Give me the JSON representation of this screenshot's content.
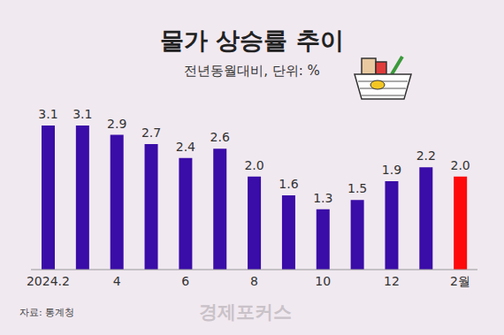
{
  "chart_data": {
    "type": "bar",
    "title": "물가 상승률 추이",
    "subtitle": "전년동월대비, 단위: %",
    "annotations": [
      "자료: 통계청",
      "경제포커스"
    ],
    "categories": [
      "2024.2",
      null,
      "4",
      null,
      "6",
      null,
      "8",
      null,
      "10",
      null,
      "12",
      null,
      "2월"
    ],
    "values": [
      3.1,
      3.1,
      2.9,
      2.7,
      2.4,
      2.6,
      2.0,
      1.6,
      1.3,
      1.5,
      1.9,
      2.2,
      2.0
    ],
    "value_labels": [
      "3.1",
      "3.1",
      "2.9",
      "2.7",
      "2.4",
      "2.6",
      "2.0",
      "1.6",
      "1.3",
      "1.5",
      "1.9",
      "2.2",
      "2.0"
    ],
    "colors": [
      "#3a0ca8",
      "#3a0ca8",
      "#3a0ca8",
      "#3a0ca8",
      "#3a0ca8",
      "#3a0ca8",
      "#3a0ca8",
      "#3a0ca8",
      "#3a0ca8",
      "#3a0ca8",
      "#3a0ca8",
      "#3a0ca8",
      "#ff0a0a"
    ],
    "ylim": [
      0,
      3.5
    ],
    "grid": false,
    "data_labels": true,
    "tick_labels": "x"
  }
}
